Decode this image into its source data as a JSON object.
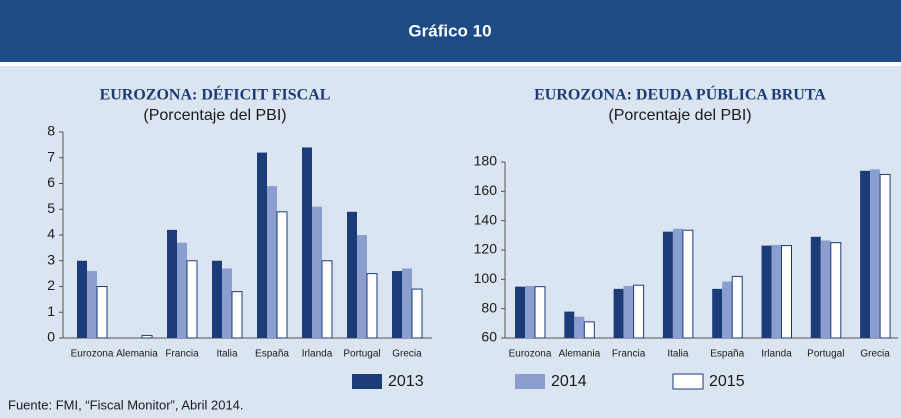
{
  "header": "Gráfico 10",
  "source": "Fuente: FMI, “Fiscal Monitor”, Abril 2014.",
  "chart_data": [
    {
      "type": "bar",
      "title": "EUROZONA: DÉFICIT FISCAL",
      "subtitle": "(Porcentaje del PBI)",
      "categories": [
        "Eurozona",
        "Alemania",
        "Francia",
        "Italia",
        "España",
        "Irlanda",
        "Portugal",
        "Grecia"
      ],
      "series": [
        {
          "name": "2013",
          "color": "#1b3c78",
          "values": [
            3.0,
            0,
            4.2,
            3.0,
            7.2,
            7.4,
            4.9,
            2.6
          ]
        },
        {
          "name": "2014",
          "color": "#8b9ed0",
          "values": [
            2.6,
            0,
            3.7,
            2.7,
            5.9,
            5.1,
            4.0,
            2.7
          ]
        },
        {
          "name": "2015",
          "color": "#ffffff",
          "values": [
            2.0,
            0.1,
            3.0,
            1.8,
            4.9,
            3.0,
            2.5,
            1.9
          ]
        }
      ],
      "ylim": [
        0,
        8
      ],
      "yticks": [
        0,
        1,
        2,
        3,
        4,
        5,
        6,
        7,
        8
      ],
      "grid": false
    },
    {
      "type": "bar",
      "title": "EUROZONA: DEUDA PÚBLICA BRUTA",
      "subtitle": "(Porcentaje del PBI)",
      "categories": [
        "Eurozona",
        "Alemania",
        "Francia",
        "Italia",
        "España",
        "Irlanda",
        "Portugal",
        "Grecia"
      ],
      "series": [
        {
          "name": "2013",
          "color": "#1b3c78",
          "values": [
            95,
            78,
            93.5,
            132.5,
            93.5,
            123,
            129,
            174
          ]
        },
        {
          "name": "2014",
          "color": "#8b9ed0",
          "values": [
            95.5,
            74.5,
            95.5,
            134.5,
            98.5,
            123.5,
            126.5,
            175
          ]
        },
        {
          "name": "2015",
          "color": "#ffffff",
          "values": [
            95,
            71,
            96,
            133.5,
            102,
            123,
            125,
            171.5
          ]
        }
      ],
      "ylim": [
        60,
        180
      ],
      "yticks": [
        60,
        80,
        100,
        120,
        140,
        160,
        180
      ],
      "grid": false
    }
  ]
}
